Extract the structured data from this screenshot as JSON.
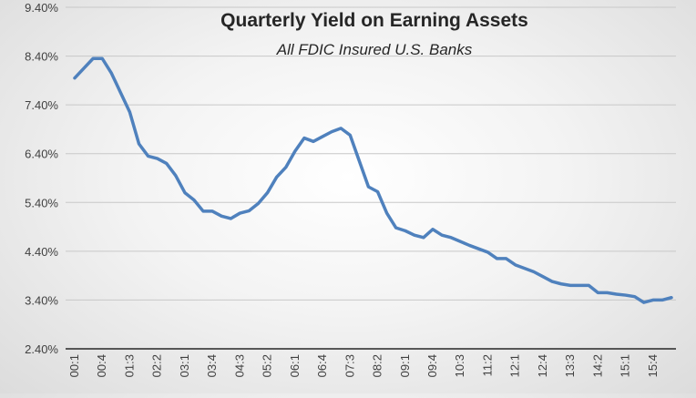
{
  "chart_data": {
    "type": "line",
    "title": "Quarterly Yield on Earning Assets",
    "subtitle": "All FDIC Insured U.S. Banks",
    "xlabel": "",
    "ylabel": "",
    "ylim": [
      2.4,
      9.4
    ],
    "y_ticks": [
      "2.40%",
      "3.40%",
      "4.40%",
      "5.40%",
      "6.40%",
      "7.40%",
      "8.40%",
      "9.40%"
    ],
    "x_tick_labels": [
      "00:1",
      "00:4",
      "01:3",
      "02:2",
      "03:1",
      "03:4",
      "04:3",
      "05:2",
      "06:1",
      "06:4",
      "07:3",
      "08:2",
      "09:1",
      "09:4",
      "10:3",
      "11:2",
      "12:1",
      "12:4",
      "13:3",
      "14:2",
      "15:1",
      "15:4"
    ],
    "grid": true,
    "line_color": "#4f81bd",
    "series": [
      {
        "values": [
          7.95,
          8.15,
          8.35,
          8.35,
          8.05,
          7.65,
          7.25,
          6.6,
          6.35,
          6.3,
          6.2,
          5.95,
          5.6,
          5.45,
          5.22,
          5.22,
          5.12,
          5.07,
          5.18,
          5.23,
          5.38,
          5.6,
          5.92,
          6.12,
          6.45,
          6.72,
          6.65,
          6.75,
          6.85,
          6.92,
          6.78,
          6.25,
          5.72,
          5.62,
          5.18,
          4.88,
          4.82,
          4.73,
          4.68,
          4.85,
          4.73,
          4.68,
          4.6,
          4.52,
          4.45,
          4.38,
          4.25,
          4.25,
          4.12,
          4.05,
          3.98,
          3.88,
          3.78,
          3.73,
          3.7,
          3.7,
          3.7,
          3.55,
          3.55,
          3.52,
          3.5,
          3.47,
          3.35,
          3.4,
          3.4,
          3.45
        ]
      }
    ]
  }
}
